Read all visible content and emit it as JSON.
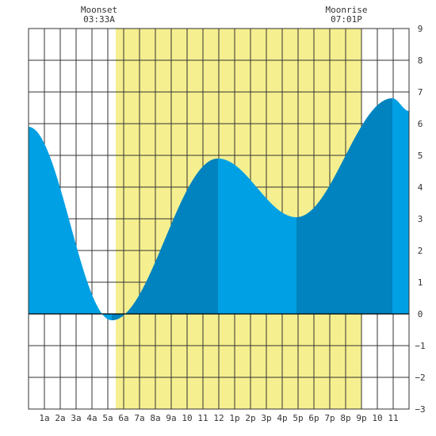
{
  "chart_data": {
    "type": "area",
    "x_unit": "hours",
    "xlim": [
      0,
      24
    ],
    "ylim": [
      -3,
      9
    ],
    "grid": true,
    "y_ticks": [
      -3,
      -2,
      -1,
      0,
      1,
      2,
      3,
      4,
      5,
      6,
      7,
      8,
      9
    ],
    "y_tick_labels": [
      "−3",
      "−2",
      "−1",
      "0",
      "1",
      "2",
      "3",
      "4",
      "5",
      "6",
      "7",
      "8",
      "9"
    ],
    "x_ticks": [
      1,
      2,
      3,
      4,
      5,
      6,
      7,
      8,
      9,
      10,
      11,
      12,
      13,
      14,
      15,
      16,
      17,
      18,
      19,
      20,
      21,
      22,
      23
    ],
    "x_tick_labels": [
      "1a",
      "2a",
      "3a",
      "4a",
      "5a",
      "6a",
      "7a",
      "8a",
      "9a",
      "10",
      "11",
      "12",
      "1p",
      "2p",
      "3p",
      "4p",
      "5p",
      "6p",
      "7p",
      "8p",
      "9p",
      "10",
      "11"
    ],
    "daylight": {
      "start": 5.5,
      "end": 21.0,
      "color": "#f5ef8f"
    },
    "annotations": [
      {
        "title": "Moonset",
        "time": "03:33A",
        "x": 3.55
      },
      {
        "title": "Moonrise",
        "time": "07:01P",
        "x": 19.02
      }
    ],
    "extrema": [
      {
        "x": 0.0,
        "y": 5.9
      },
      {
        "x": 5.25,
        "y": -0.2
      },
      {
        "x": 11.95,
        "y": 4.9
      },
      {
        "x": 16.9,
        "y": 3.05
      },
      {
        "x": 22.95,
        "y": 6.8
      },
      {
        "x": 24.0,
        "y": 6.4
      }
    ],
    "shade_bands": [
      {
        "from": 5.25,
        "to": 11.95,
        "color": "#0083be"
      },
      {
        "from": 16.9,
        "to": 22.95,
        "color": "#0083be"
      }
    ],
    "fill_color": "#00a0e4"
  }
}
